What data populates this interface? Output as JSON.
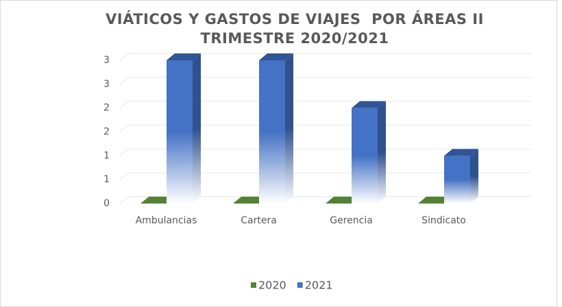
{
  "chart_data": {
    "type": "bar3d",
    "title": "VIÁTICOS Y GASTOS DE VIAJES  POR ÁREAS II TRIMESTRE 2020/2021",
    "categories": [
      "Ambulancias",
      "Cartera",
      "Gerencia",
      "Sindicato"
    ],
    "series": [
      {
        "name": "2020",
        "color": "#548235",
        "values": [
          0,
          0,
          0,
          0
        ]
      },
      {
        "name": "2021",
        "color": "#4472c4",
        "values": [
          3,
          3,
          2,
          1
        ]
      }
    ],
    "ylim": [
      0,
      3
    ],
    "yticks": [
      0,
      {
        "value": 0.5,
        "label": "1"
      },
      1,
      {
        "value": 1.5,
        "label": "2"
      },
      2,
      {
        "value": 2.5,
        "label": "3"
      },
      3
    ],
    "grid": true,
    "legend": "bottom"
  }
}
